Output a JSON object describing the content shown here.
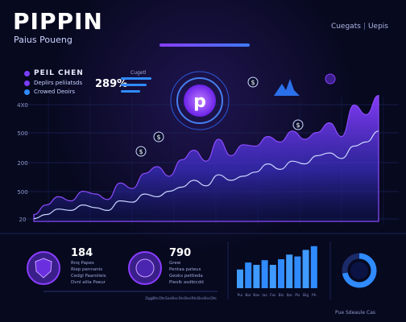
{
  "header": {
    "title": "PIPPIN",
    "subtitle": "Paius Poueng",
    "links": [
      "Cuegats",
      "Uepis"
    ]
  },
  "legend": {
    "heading": "PEIL CHEN",
    "items": [
      {
        "label": "Deplirs peliiatsds",
        "color": "#7a3dff"
      },
      {
        "label": "Crowed Deoirs",
        "color": "#2f8bff"
      }
    ]
  },
  "kpi": {
    "value": "289%",
    "tag": "Cugetl"
  },
  "center_badge": {
    "letter": "p",
    "icon": "pippin-logo-icon"
  },
  "chart_data": {
    "type": "area",
    "title": "PIPPIN",
    "xlabel": "",
    "ylabel": "",
    "y_ticks": [
      "4X0",
      "500",
      "200",
      "500",
      "20"
    ],
    "ylim": [
      0,
      1
    ],
    "x": [
      0,
      1,
      2,
      3,
      4,
      5,
      6,
      7,
      8,
      9,
      10,
      11,
      12,
      13,
      14,
      15,
      16,
      17,
      18,
      19,
      20,
      21,
      22,
      23,
      24,
      25,
      26,
      27,
      28
    ],
    "series": [
      {
        "values": [
          0.05,
          0.12,
          0.18,
          0.15,
          0.22,
          0.2,
          0.16,
          0.28,
          0.24,
          0.35,
          0.4,
          0.33,
          0.45,
          0.52,
          0.44,
          0.6,
          0.48,
          0.56,
          0.55,
          0.62,
          0.58,
          0.66,
          0.6,
          0.65,
          0.72,
          0.62,
          0.85,
          0.78,
          0.92
        ],
        "color": "#7a3dff"
      },
      {
        "values": [
          0.02,
          0.05,
          0.09,
          0.08,
          0.12,
          0.1,
          0.08,
          0.15,
          0.14,
          0.2,
          0.18,
          0.22,
          0.25,
          0.3,
          0.26,
          0.34,
          0.3,
          0.33,
          0.36,
          0.42,
          0.38,
          0.44,
          0.42,
          0.48,
          0.5,
          0.46,
          0.55,
          0.58,
          0.66
        ],
        "color": "#c9d6ff"
      }
    ],
    "grid": true
  },
  "chart_markers": [
    {
      "icon": "coin-icon",
      "label": "$"
    },
    {
      "icon": "coin-icon",
      "label": "$"
    },
    {
      "icon": "coin-icon",
      "label": "$"
    },
    {
      "icon": "coin-icon",
      "label": "$"
    }
  ],
  "panels": [
    {
      "value": "184",
      "lines": [
        "Rnq Papes",
        "Riep pennanis",
        "Cedgl Paarolieis",
        "Dvnl ailia Poeur"
      ],
      "icon": "shield-icon"
    },
    {
      "value": "790",
      "lines": [
        "Grew",
        "Pentaa pateus",
        "Geoks pettleda",
        "Pieolk asdbicdd"
      ],
      "icon": "coin-icon"
    }
  ],
  "axis_ticks": [
    "Dgg",
    "Bts",
    "Dts",
    "Sas",
    "Bss",
    "Sts",
    "Bes",
    "Rts",
    "Bss",
    "Bss",
    "Dts"
  ],
  "bar_chart": {
    "type": "bar",
    "values": [
      0.4,
      0.55,
      0.5,
      0.6,
      0.5,
      0.62,
      0.72,
      0.68,
      0.82,
      0.9
    ],
    "ticks": [
      "Pui",
      "Bor",
      "Bas",
      "Ias",
      "Fas",
      "Bis",
      "Ibe",
      "Pis",
      "Big",
      "Ph"
    ]
  },
  "donut": {
    "value": 0.72,
    "icon": "donut-chart-icon"
  },
  "footer": "Pue Sdeaule Cas",
  "colors": {
    "accent": "#7a3dff",
    "blue": "#2f8bff",
    "bg": "#07091f"
  }
}
